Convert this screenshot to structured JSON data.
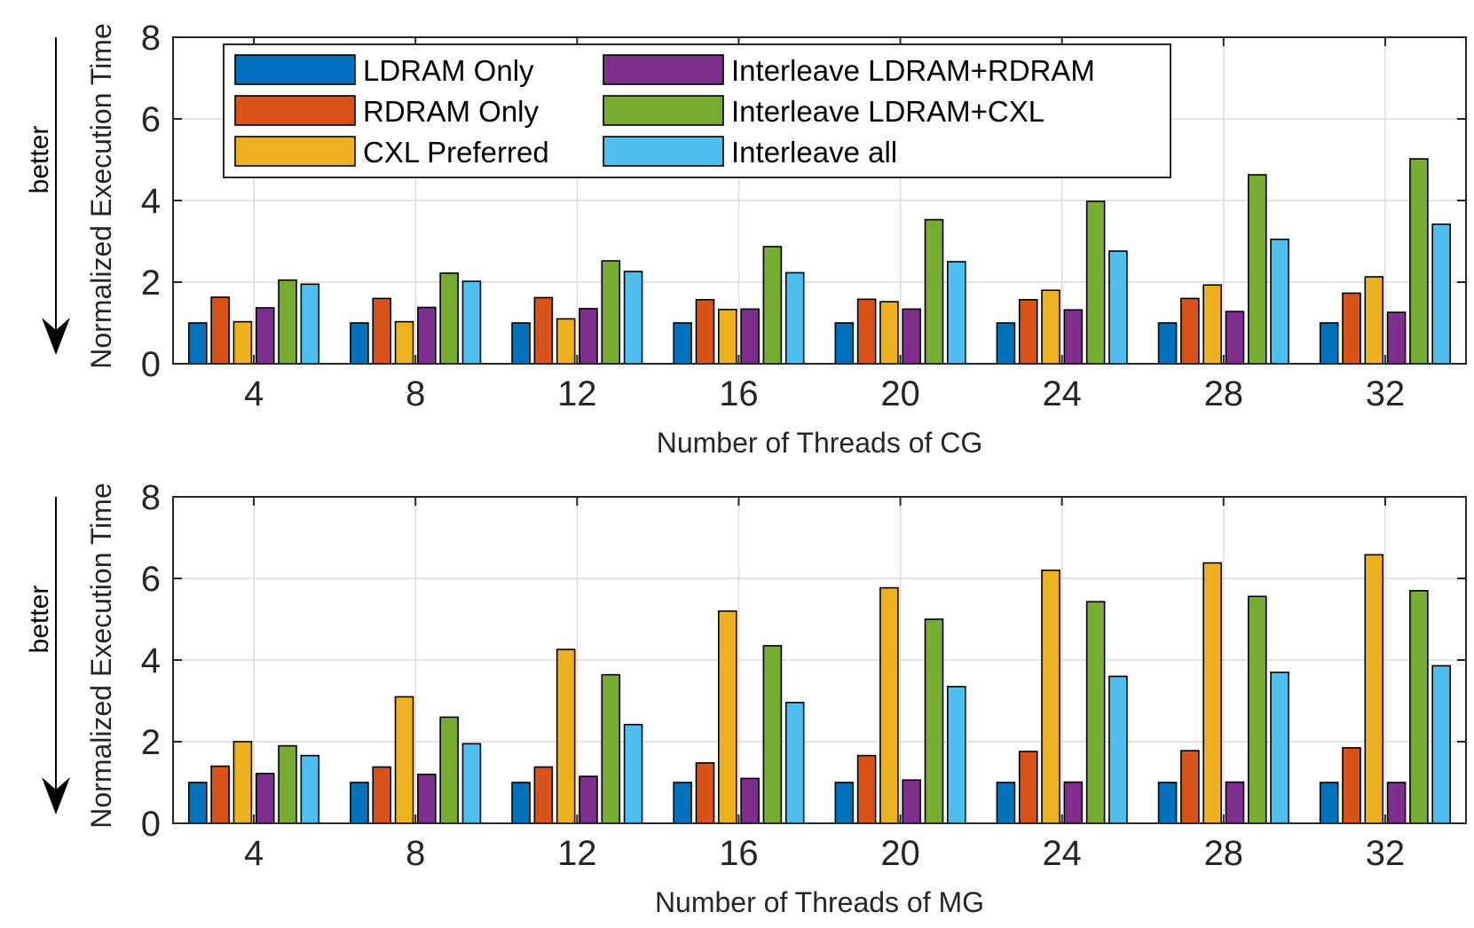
{
  "chart_data": [
    {
      "type": "bar",
      "title": "",
      "xlabel": "Number of Threads of CG",
      "ylabel": "Normalized Execution Time",
      "annotation": "better",
      "ylim": [
        0,
        8
      ],
      "yticks": [
        0,
        2,
        4,
        6,
        8
      ],
      "grid": true,
      "legend_position": "top-left",
      "categories": [
        "4",
        "8",
        "12",
        "16",
        "20",
        "24",
        "28",
        "32"
      ],
      "series": [
        {
          "name": "LDRAM Only",
          "color": "#0072BD",
          "values": [
            1.0,
            1.0,
            1.0,
            1.0,
            1.0,
            1.0,
            1.0,
            1.0
          ]
        },
        {
          "name": "RDRAM Only",
          "color": "#D95319",
          "values": [
            1.63,
            1.6,
            1.62,
            1.57,
            1.58,
            1.57,
            1.6,
            1.73
          ]
        },
        {
          "name": "CXL Preferred",
          "color": "#EDB120",
          "values": [
            1.03,
            1.03,
            1.1,
            1.33,
            1.52,
            1.8,
            1.93,
            2.13
          ]
        },
        {
          "name": "Interleave LDRAM+RDRAM",
          "color": "#7E2F8E",
          "values": [
            1.37,
            1.38,
            1.35,
            1.34,
            1.34,
            1.32,
            1.28,
            1.26
          ]
        },
        {
          "name": "Interleave LDRAM+CXL",
          "color": "#77AC30",
          "values": [
            2.05,
            2.22,
            2.52,
            2.87,
            3.53,
            3.98,
            4.63,
            5.02
          ]
        },
        {
          "name": "Interleave all",
          "color": "#4DBEEE",
          "values": [
            1.95,
            2.02,
            2.26,
            2.23,
            2.5,
            2.76,
            3.05,
            3.42
          ]
        }
      ]
    },
    {
      "type": "bar",
      "title": "",
      "xlabel": "Number of Threads of MG",
      "ylabel": "Normalized Execution Time",
      "annotation": "better",
      "ylim": [
        0,
        8
      ],
      "yticks": [
        0,
        2,
        4,
        6,
        8
      ],
      "grid": true,
      "categories": [
        "4",
        "8",
        "12",
        "16",
        "20",
        "24",
        "28",
        "32"
      ],
      "series": [
        {
          "name": "LDRAM Only",
          "color": "#0072BD",
          "values": [
            1.0,
            1.0,
            1.0,
            1.0,
            1.0,
            1.0,
            1.0,
            1.0
          ]
        },
        {
          "name": "RDRAM Only",
          "color": "#D95319",
          "values": [
            1.4,
            1.38,
            1.38,
            1.48,
            1.66,
            1.76,
            1.78,
            1.85
          ]
        },
        {
          "name": "CXL Preferred",
          "color": "#EDB120",
          "values": [
            2.0,
            3.1,
            4.26,
            5.2,
            5.77,
            6.2,
            6.38,
            6.58
          ]
        },
        {
          "name": "Interleave LDRAM+RDRAM",
          "color": "#7E2F8E",
          "values": [
            1.22,
            1.2,
            1.15,
            1.1,
            1.06,
            1.01,
            1.01,
            1.0
          ]
        },
        {
          "name": "Interleave LDRAM+CXL",
          "color": "#77AC30",
          "values": [
            1.9,
            2.6,
            3.64,
            4.35,
            5.0,
            5.43,
            5.56,
            5.7
          ]
        },
        {
          "name": "Interleave all",
          "color": "#4DBEEE",
          "values": [
            1.66,
            1.95,
            2.42,
            2.96,
            3.35,
            3.6,
            3.7,
            3.86
          ]
        }
      ]
    }
  ]
}
